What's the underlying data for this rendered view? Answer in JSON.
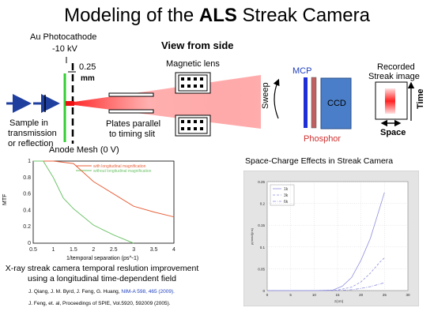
{
  "slide": {
    "title_pre": "Modeling of the ",
    "title_bold": "ALS",
    "title_post": " Streak Camera"
  },
  "diagram": {
    "photocathode_line1": "Au Photocathode",
    "photocathode_line2": "-10 kV",
    "gap_value": "0.25",
    "gap_unit": "mm",
    "view_label": "View from side",
    "lens_label": "Magnetic lens",
    "mcp_label": "MCP",
    "ccd_label": "CCD",
    "phosphor_label": "Phosphor",
    "sweep_label": "Sweep",
    "recorded_line1": "Recorded",
    "recorded_line2": "Streak image",
    "time_label": "Time",
    "space_label": "Space",
    "sample_line1": "Sample in",
    "sample_line2": "transmission",
    "sample_line3": "or reflection",
    "plates_line1": "Plates parallel",
    "plates_line2": "to timing slit",
    "anode_label": "Anode Mesh (0 V)"
  },
  "mtf_plot": {
    "ylabel": "MTF",
    "xlabel": "1/temporal separation (ps^-1)",
    "xticks": [
      "0.5",
      "1",
      "1.5",
      "2",
      "2.5",
      "3",
      "3.5",
      "4"
    ],
    "yticks": [
      "0",
      "0.2",
      "0.4",
      "0.6",
      "0.8",
      "1"
    ],
    "legend_with": "with longitudinal magnification",
    "legend_without": "without longitudinal magnification",
    "caption_line1": "X-ray streak camera temporal reslution improvement",
    "caption_line2": "using a longitudinal time-dependent field",
    "ref1_text": "J. Qiang, J. M. Byrd, J. Feng, G. Huang, ",
    "ref1_link": "NIM-A 598, 465 (2009).",
    "ref2_text": "J. Feng, et. al, Proceedings of SPIE, Vol.5920, 592009 (2005)."
  },
  "sc_plot": {
    "title": "Space-Charge Effects in Streak Camera",
    "ylabel": "ρ(mrad)(ns)",
    "xlabel": "z(cm)",
    "xticks": [
      "0",
      "5",
      "10",
      "15",
      "20",
      "25",
      "30"
    ],
    "yticks": [
      "0",
      "0.05",
      "0.1",
      "0.15",
      "0.2",
      "0.25"
    ],
    "legend": [
      "1k",
      "3k",
      "6k"
    ]
  },
  "chart_data": [
    {
      "type": "line",
      "xlabel": "1/temporal separation (ps^-1)",
      "ylabel": "MTF",
      "xlim": [
        0.5,
        4
      ],
      "ylim": [
        0,
        1
      ],
      "series": [
        {
          "name": "with longitudinal magnification",
          "color": "#e8603a",
          "x": [
            0.5,
            1.0,
            1.5,
            2.0,
            2.5,
            3.0,
            3.5,
            4.0
          ],
          "y": [
            1.0,
            1.0,
            0.97,
            0.75,
            0.6,
            0.45,
            0.38,
            0.32
          ]
        },
        {
          "name": "without longitudinal magnification",
          "color": "#6fc46a",
          "x": [
            0.5,
            0.75,
            1.0,
            1.25,
            1.5,
            2.0,
            2.5,
            3.0
          ],
          "y": [
            1.0,
            1.0,
            0.8,
            0.55,
            0.42,
            0.22,
            0.1,
            0.0
          ]
        }
      ]
    },
    {
      "type": "line",
      "title": "Space-Charge Effects in Streak Camera",
      "xlabel": "z(cm)",
      "ylabel": "ρ(mrad)(ns)",
      "xlim": [
        0,
        30
      ],
      "ylim": [
        0,
        0.25
      ],
      "series": [
        {
          "name": "1k",
          "dash": "solid",
          "color": "#8f8fe0",
          "x": [
            0,
            5,
            10,
            14,
            16,
            18,
            20,
            22,
            24,
            25
          ],
          "y": [
            0,
            0,
            0,
            0.001,
            0.01,
            0.03,
            0.07,
            0.12,
            0.19,
            0.225
          ]
        },
        {
          "name": "3k",
          "dash": "dash",
          "color": "#8f8fe0",
          "x": [
            0,
            5,
            10,
            15,
            18,
            20,
            22,
            24,
            25
          ],
          "y": [
            0,
            0,
            0,
            0.001,
            0.008,
            0.02,
            0.04,
            0.065,
            0.075
          ]
        },
        {
          "name": "6k",
          "dash": "dashdot",
          "color": "#8f8fe0",
          "x": [
            0,
            5,
            10,
            15,
            18,
            20,
            22,
            24,
            25
          ],
          "y": [
            0,
            0,
            0,
            0.0,
            0.002,
            0.005,
            0.009,
            0.015,
            0.018
          ]
        }
      ]
    }
  ]
}
